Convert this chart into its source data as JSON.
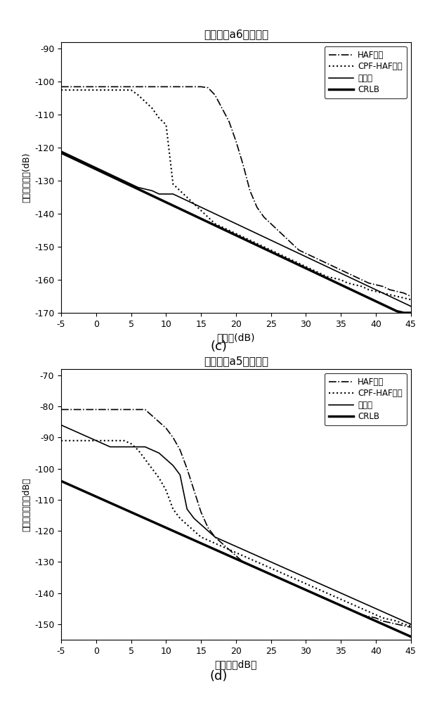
{
  "plot_c": {
    "title": "相位参数a6估计误差",
    "xlabel": "信噪比(dB)",
    "ylabel": "最小均方误差(dB)",
    "xlim": [
      -5,
      45
    ],
    "ylim": [
      -170,
      -88
    ],
    "yticks": [
      -170,
      -160,
      -150,
      -140,
      -130,
      -120,
      -110,
      -100,
      -90
    ],
    "label_c": "(c)",
    "snr": [
      -5,
      -4,
      -3,
      -2,
      -1,
      0,
      1,
      2,
      3,
      4,
      5,
      6,
      7,
      8,
      9,
      10,
      11,
      12,
      13,
      14,
      15,
      16,
      17,
      18,
      19,
      20,
      21,
      22,
      23,
      24,
      25,
      26,
      27,
      28,
      29,
      30,
      31,
      32,
      33,
      34,
      35,
      36,
      37,
      38,
      39,
      40,
      41,
      42,
      43,
      44,
      45
    ],
    "HAF": [
      -101.5,
      -101.5,
      -101.5,
      -101.5,
      -101.5,
      -101.5,
      -101.5,
      -101.5,
      -101.5,
      -101.5,
      -101.5,
      -101.5,
      -101.5,
      -101.5,
      -101.5,
      -101.5,
      -101.5,
      -101.5,
      -101.5,
      -101.5,
      -101.5,
      -101.8,
      -104,
      -108,
      -112,
      -118,
      -125,
      -133,
      -138,
      -141,
      -143,
      -145,
      -147,
      -149,
      -151,
      -152,
      -153,
      -154,
      -155,
      -156,
      -157,
      -158,
      -159,
      -160,
      -161,
      -161.5,
      -162,
      -163,
      -163.5,
      -164,
      -165
    ],
    "CPF_HAF": [
      -102.5,
      -102.5,
      -102.5,
      -102.5,
      -102.5,
      -102.5,
      -102.5,
      -102.5,
      -102.5,
      -102.5,
      -102.5,
      -104,
      -106,
      -108,
      -111,
      -113,
      -131,
      -133,
      -135,
      -137,
      -139,
      -141,
      -143,
      -144,
      -145,
      -146,
      -147,
      -148,
      -149,
      -150,
      -151,
      -152,
      -153,
      -154,
      -155,
      -156,
      -157,
      -158,
      -159,
      -159.5,
      -160,
      -161,
      -161.5,
      -162,
      -163,
      -163.5,
      -164,
      -164.5,
      -165,
      -165.5,
      -166
    ],
    "BenFaMing": [
      -121,
      -122,
      -123,
      -124,
      -125,
      -126,
      -127,
      -128,
      -129,
      -130,
      -131,
      -132,
      -132.5,
      -133,
      -134,
      -134,
      -134,
      -135,
      -136,
      -137,
      -138,
      -139,
      -140,
      -141,
      -142,
      -143,
      -144,
      -145,
      -146,
      -147,
      -148,
      -149,
      -150,
      -151,
      -152,
      -153,
      -154,
      -155,
      -156,
      -157,
      -158,
      -159,
      -160,
      -161,
      -162,
      -163,
      -164,
      -165,
      -166,
      -167,
      -168
    ],
    "CRLB": [
      -121.5,
      -122.5,
      -123.5,
      -124.5,
      -125.5,
      -126.5,
      -127.5,
      -128.5,
      -129.5,
      -130.5,
      -131.5,
      -132.5,
      -133.5,
      -134.5,
      -135.5,
      -136.5,
      -137.5,
      -138.5,
      -139.5,
      -140.5,
      -141.5,
      -142.5,
      -143.5,
      -144.5,
      -145.5,
      -146.5,
      -147.5,
      -148.5,
      -149.5,
      -150.5,
      -151.5,
      -152.5,
      -153.5,
      -154.5,
      -155.5,
      -156.5,
      -157.5,
      -158.5,
      -159.5,
      -160.5,
      -161.5,
      -162.5,
      -163.5,
      -164.5,
      -165.5,
      -166.5,
      -167.5,
      -168.5,
      -169.5,
      -170,
      -170
    ]
  },
  "plot_d": {
    "title": "相位参数a5估计误差",
    "xlabel": "信噪比（dB）",
    "ylabel": "最小均方误差（dB）",
    "xlim": [
      -5,
      45
    ],
    "ylim": [
      -155,
      -68
    ],
    "yticks": [
      -150,
      -140,
      -130,
      -120,
      -110,
      -100,
      -90,
      -80,
      -70
    ],
    "label_d": "(d)",
    "snr": [
      -5,
      -4,
      -3,
      -2,
      -1,
      0,
      1,
      2,
      3,
      4,
      5,
      6,
      7,
      8,
      9,
      10,
      11,
      12,
      13,
      14,
      15,
      16,
      17,
      18,
      19,
      20,
      21,
      22,
      23,
      24,
      25,
      26,
      27,
      28,
      29,
      30,
      31,
      32,
      33,
      34,
      35,
      36,
      37,
      38,
      39,
      40,
      41,
      42,
      43,
      44,
      45
    ],
    "HAF": [
      -81,
      -81,
      -81,
      -81,
      -81,
      -81,
      -81,
      -81,
      -81,
      -81,
      -81,
      -81,
      -81,
      -83,
      -85,
      -87,
      -90,
      -94,
      -100,
      -107,
      -114,
      -119,
      -122,
      -124,
      -126,
      -128,
      -130,
      -131,
      -132,
      -133,
      -134,
      -135,
      -136,
      -137,
      -138,
      -139,
      -140,
      -141,
      -142,
      -143,
      -144,
      -145,
      -146,
      -147,
      -147.5,
      -148,
      -149,
      -149.5,
      -150,
      -150.5,
      -151
    ],
    "CPF_HAF": [
      -91,
      -91,
      -91,
      -91,
      -91,
      -91,
      -91,
      -91,
      -91,
      -91,
      -92,
      -94,
      -97,
      -100,
      -103,
      -107,
      -113,
      -116,
      -118,
      -120,
      -122,
      -123,
      -124,
      -125,
      -126,
      -127,
      -128,
      -129,
      -130,
      -131,
      -132,
      -133,
      -134,
      -135,
      -136,
      -137,
      -138,
      -139,
      -140,
      -141,
      -142,
      -143,
      -144,
      -145,
      -146,
      -147,
      -148,
      -148.5,
      -149,
      -150,
      -150.5
    ],
    "BenFaMing": [
      -86,
      -87,
      -88,
      -89,
      -90,
      -91,
      -92,
      -93,
      -93,
      -93,
      -93,
      -93,
      -93,
      -94,
      -95,
      -97,
      -99,
      -102,
      -113,
      -116,
      -118,
      -120,
      -122,
      -123,
      -124,
      -125,
      -126,
      -127,
      -128,
      -129,
      -130,
      -131,
      -132,
      -133,
      -134,
      -135,
      -136,
      -137,
      -138,
      -139,
      -140,
      -141,
      -142,
      -143,
      -144,
      -145,
      -146,
      -147,
      -148,
      -149,
      -150
    ],
    "CRLB": [
      -104,
      -105,
      -106,
      -107,
      -108,
      -109,
      -110,
      -111,
      -112,
      -113,
      -114,
      -115,
      -116,
      -117,
      -118,
      -119,
      -120,
      -121,
      -122,
      -123,
      -124,
      -125,
      -126,
      -127,
      -128,
      -129,
      -130,
      -131,
      -132,
      -133,
      -134,
      -135,
      -136,
      -137,
      -138,
      -139,
      -140,
      -141,
      -142,
      -143,
      -144,
      -145,
      -146,
      -147,
      -148,
      -149,
      -150,
      -151,
      -152,
      -153,
      -154
    ]
  }
}
